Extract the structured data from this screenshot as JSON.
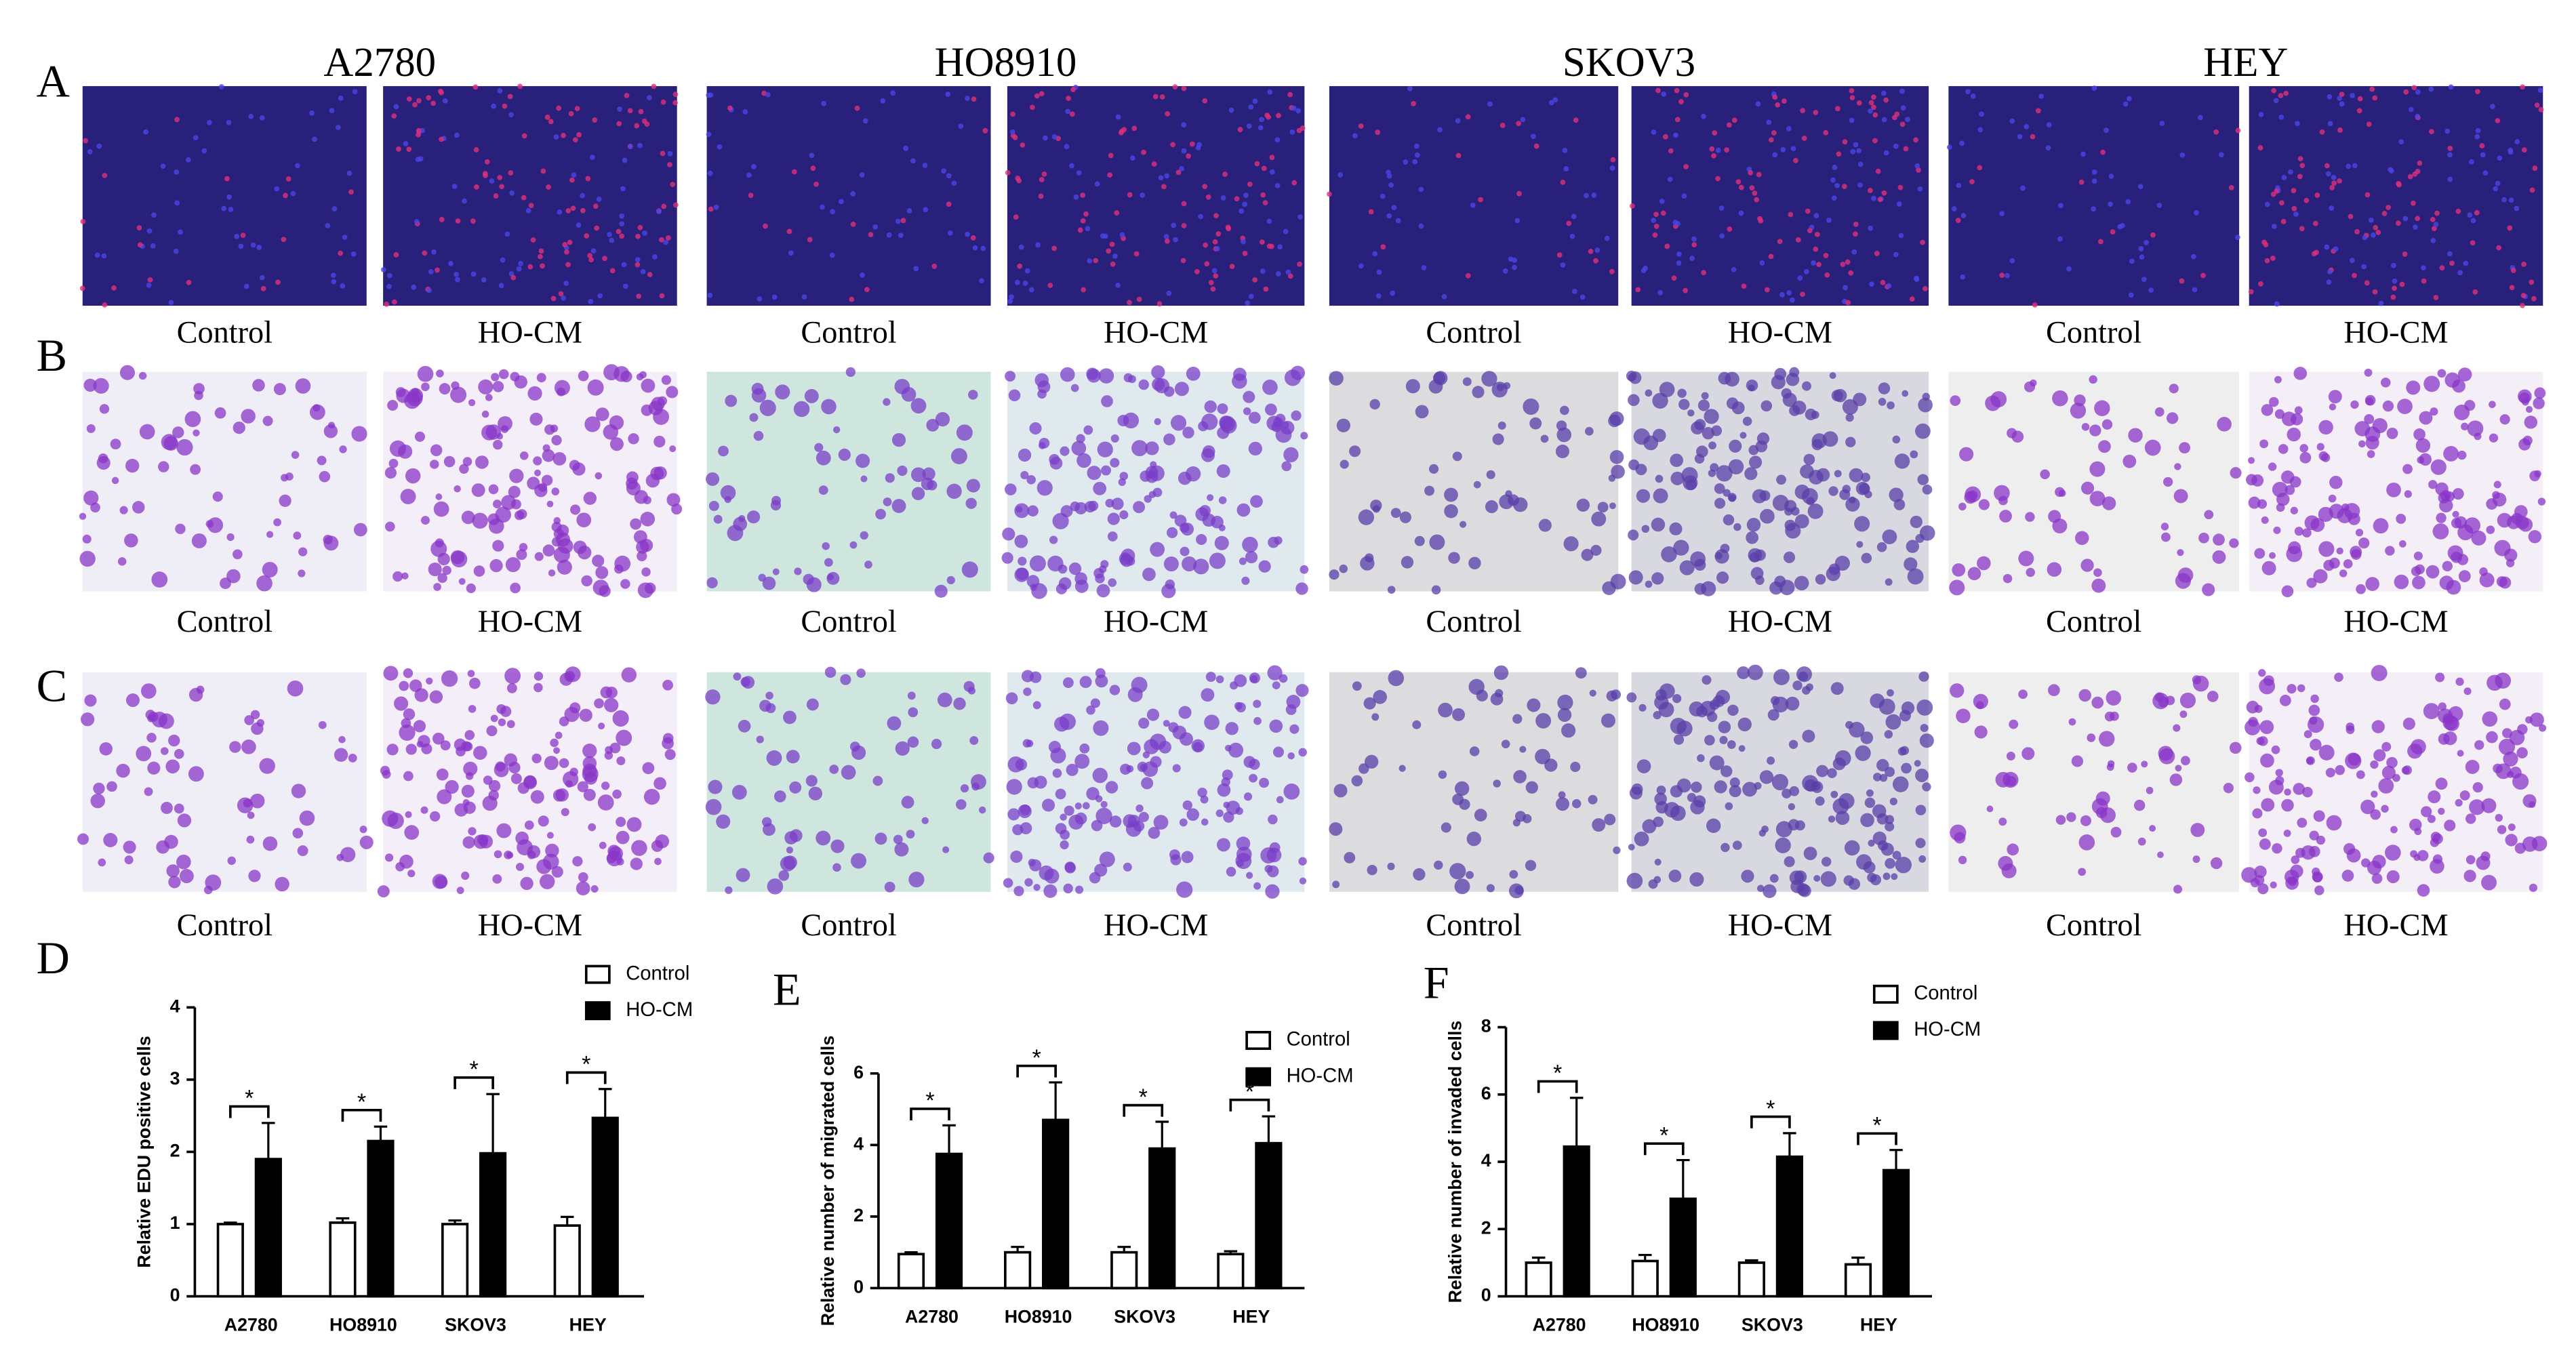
{
  "cell_lines": [
    "A2780",
    "HO8910",
    "SKOV3",
    "HEY"
  ],
  "rows": [
    {
      "label": "A",
      "captions": [
        "Control",
        "HO-CM",
        "Control",
        "HO-CM",
        "Control",
        "HO-CM",
        "Control",
        "HO-CM"
      ]
    },
    {
      "label": "B",
      "captions": [
        "Control",
        "HO-CM",
        "Control",
        "HO-CM",
        "Control",
        "HO-CM",
        "Control",
        "HO-CM"
      ]
    },
    {
      "label": "C",
      "captions": [
        "Control",
        "HO-CM",
        "Control",
        "HO-CM",
        "Control",
        "HO-CM",
        "Control",
        "HO-CM"
      ]
    }
  ],
  "chart_data": [
    {
      "type": "bar",
      "panel_label": "D",
      "y_label": "Relative EDU positive cells",
      "categories": [
        "A2780",
        "HO8910",
        "SKOV3",
        "HEY"
      ],
      "series": [
        {
          "name": "Control",
          "color": "#ffffff",
          "values": [
            1.0,
            1.02,
            1.0,
            0.98
          ],
          "errors": [
            0.02,
            0.06,
            0.05,
            0.12
          ]
        },
        {
          "name": "HO-CM",
          "color": "#000000",
          "values": [
            1.9,
            2.15,
            1.98,
            2.47
          ],
          "errors": [
            0.5,
            0.2,
            0.82,
            0.4
          ]
        }
      ],
      "annotations": [
        "*",
        "*",
        "*",
        "*"
      ],
      "ylim": [
        0,
        4
      ],
      "yticks": [
        0,
        1,
        2,
        3,
        4
      ],
      "legend": "upper right"
    },
    {
      "type": "bar",
      "panel_label": "E",
      "y_label": "Relative number of migrated  cells",
      "categories": [
        "A2780",
        "HO8910",
        "SKOV3",
        "HEY"
      ],
      "series": [
        {
          "name": "Control",
          "color": "#ffffff",
          "values": [
            0.95,
            1.0,
            1.0,
            0.95
          ],
          "errors": [
            0.05,
            0.15,
            0.15,
            0.08
          ]
        },
        {
          "name": "HO-CM",
          "color": "#000000",
          "values": [
            3.75,
            4.7,
            3.9,
            4.05
          ],
          "errors": [
            0.8,
            1.05,
            0.75,
            0.75
          ]
        }
      ],
      "annotations": [
        "*",
        "*",
        "*",
        "*"
      ],
      "ylim": [
        0,
        6
      ],
      "yticks": [
        0,
        2,
        4,
        6
      ],
      "legend": "upper right"
    },
    {
      "type": "bar",
      "panel_label": "F",
      "y_label": "Relative number of invaded  cells",
      "categories": [
        "A2780",
        "HO8910",
        "SKOV3",
        "HEY"
      ],
      "series": [
        {
          "name": "Control",
          "color": "#ffffff",
          "values": [
            1.0,
            1.05,
            1.0,
            0.95
          ],
          "errors": [
            0.15,
            0.18,
            0.07,
            0.2
          ]
        },
        {
          "name": "HO-CM",
          "color": "#000000",
          "values": [
            4.45,
            2.9,
            4.15,
            3.75
          ],
          "errors": [
            1.45,
            1.15,
            0.7,
            0.6
          ]
        }
      ],
      "annotations": [
        "*",
        "*",
        "*",
        "*"
      ],
      "ylim": [
        0,
        8
      ],
      "yticks": [
        0,
        2,
        4,
        6,
        8
      ],
      "legend": "upper right"
    }
  ]
}
